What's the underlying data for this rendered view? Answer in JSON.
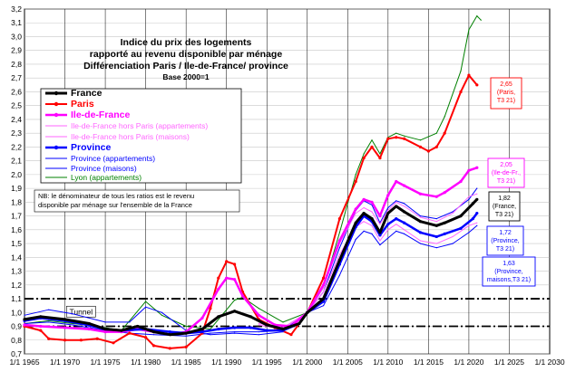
{
  "chart_data": {
    "type": "line",
    "title": "Indice du prix des logements\nrapporté au revenu disponible par ménage\nDifférenciation Paris / Ile-de-France/ province",
    "subtitle": "Base 2000=1",
    "xlim": [
      1965,
      2030
    ],
    "ylim": [
      0.7,
      3.2
    ],
    "ytick_step": 0.1,
    "xticks": [
      1965,
      1970,
      1975,
      1980,
      1985,
      1990,
      1995,
      2000,
      2005,
      2010,
      2015,
      2020,
      2025,
      2030
    ],
    "xtick_labels": [
      "1/1 1965",
      "1/1 1970",
      "1/1 1975",
      "1/1 1980",
      "1/1 1985",
      "1/1 1990",
      "1/1 1995",
      "1/1 2000",
      "1/1 2005",
      "1/1 2010",
      "1/1 2015",
      "1/1 2020",
      "1/1 2025",
      "1/1 2030"
    ],
    "grid": true,
    "tunnel": {
      "label": "Tunnel",
      "upper": 1.1,
      "lower": 0.9
    },
    "legend_position": "top-left",
    "note": {
      "lines": [
        "NB: le dénominateur de tous les ratios est le revenu",
        "disponible par ménage sur l'ensemble de la France"
      ]
    },
    "series": [
      {
        "name": "France",
        "color": "#000000",
        "width": 3,
        "marker": true,
        "points": [
          [
            1965,
            0.95
          ],
          [
            1967,
            0.97
          ],
          [
            1970,
            0.95
          ],
          [
            1973,
            0.92
          ],
          [
            1975,
            0.88
          ],
          [
            1977,
            0.87
          ],
          [
            1979,
            0.9
          ],
          [
            1981,
            0.86
          ],
          [
            1983,
            0.84
          ],
          [
            1985,
            0.85
          ],
          [
            1987,
            0.88
          ],
          [
            1989,
            0.97
          ],
          [
            1991,
            1.01
          ],
          [
            1993,
            0.97
          ],
          [
            1995,
            0.91
          ],
          [
            1997,
            0.88
          ],
          [
            1999,
            0.92
          ],
          [
            2000,
            1.0
          ],
          [
            2002,
            1.1
          ],
          [
            2004,
            1.38
          ],
          [
            2006,
            1.65
          ],
          [
            2007,
            1.72
          ],
          [
            2008,
            1.68
          ],
          [
            2009,
            1.58
          ],
          [
            2010,
            1.72
          ],
          [
            2011,
            1.77
          ],
          [
            2012,
            1.73
          ],
          [
            2014,
            1.66
          ],
          [
            2016,
            1.63
          ],
          [
            2017,
            1.65
          ],
          [
            2019,
            1.7
          ],
          [
            2020.5,
            1.79
          ],
          [
            2021,
            1.82
          ]
        ]
      },
      {
        "name": "Paris",
        "color": "#ff0000",
        "width": 2,
        "marker": true,
        "points": [
          [
            1965,
            0.9
          ],
          [
            1967,
            0.87
          ],
          [
            1968,
            0.81
          ],
          [
            1970,
            0.8
          ],
          [
            1972,
            0.8
          ],
          [
            1974,
            0.81
          ],
          [
            1976,
            0.78
          ],
          [
            1978,
            0.85
          ],
          [
            1980,
            0.82
          ],
          [
            1981,
            0.76
          ],
          [
            1983,
            0.74
          ],
          [
            1985,
            0.75
          ],
          [
            1987,
            0.85
          ],
          [
            1988,
            1.03
          ],
          [
            1989,
            1.25
          ],
          [
            1990,
            1.37
          ],
          [
            1991,
            1.35
          ],
          [
            1992,
            1.15
          ],
          [
            1994,
            0.95
          ],
          [
            1996,
            0.89
          ],
          [
            1998,
            0.84
          ],
          [
            2000,
            1.0
          ],
          [
            2002,
            1.25
          ],
          [
            2004,
            1.68
          ],
          [
            2006,
            1.95
          ],
          [
            2007,
            2.12
          ],
          [
            2008,
            2.2
          ],
          [
            2009,
            2.12
          ],
          [
            2010,
            2.26
          ],
          [
            2011,
            2.27
          ],
          [
            2012,
            2.26
          ],
          [
            2014,
            2.2
          ],
          [
            2015,
            2.17
          ],
          [
            2016,
            2.2
          ],
          [
            2017,
            2.3
          ],
          [
            2019,
            2.6
          ],
          [
            2020,
            2.72
          ],
          [
            2021,
            2.65
          ]
        ]
      },
      {
        "name": "Ile-de-France",
        "color": "#ff00ff",
        "width": 2.5,
        "marker": true,
        "points": [
          [
            1965,
            0.91
          ],
          [
            1967,
            0.9
          ],
          [
            1970,
            0.89
          ],
          [
            1973,
            0.88
          ],
          [
            1975,
            0.86
          ],
          [
            1977,
            0.86
          ],
          [
            1979,
            0.88
          ],
          [
            1981,
            0.86
          ],
          [
            1983,
            0.84
          ],
          [
            1985,
            0.86
          ],
          [
            1987,
            0.96
          ],
          [
            1989,
            1.17
          ],
          [
            1990,
            1.25
          ],
          [
            1991,
            1.24
          ],
          [
            1992,
            1.12
          ],
          [
            1994,
            0.98
          ],
          [
            1996,
            0.91
          ],
          [
            1998,
            0.9
          ],
          [
            2000,
            1.0
          ],
          [
            2002,
            1.2
          ],
          [
            2004,
            1.52
          ],
          [
            2006,
            1.75
          ],
          [
            2007,
            1.82
          ],
          [
            2008,
            1.8
          ],
          [
            2009,
            1.7
          ],
          [
            2010,
            1.85
          ],
          [
            2011,
            1.95
          ],
          [
            2012,
            1.92
          ],
          [
            2014,
            1.86
          ],
          [
            2016,
            1.84
          ],
          [
            2017,
            1.87
          ],
          [
            2019,
            1.95
          ],
          [
            2020,
            2.03
          ],
          [
            2021,
            2.05
          ]
        ]
      },
      {
        "name": "Ile-de-France hors Paris (appartements)",
        "color": "#ff66ff",
        "width": 1,
        "marker": false,
        "points": [
          [
            1994,
            0.92
          ],
          [
            1997,
            0.89
          ],
          [
            2000,
            1.0
          ],
          [
            2002,
            1.18
          ],
          [
            2004,
            1.5
          ],
          [
            2006,
            1.72
          ],
          [
            2007,
            1.76
          ],
          [
            2008,
            1.73
          ],
          [
            2009,
            1.64
          ],
          [
            2010,
            1.74
          ],
          [
            2011,
            1.8
          ],
          [
            2012,
            1.77
          ],
          [
            2014,
            1.69
          ],
          [
            2016,
            1.66
          ],
          [
            2018,
            1.72
          ],
          [
            2020,
            1.84
          ],
          [
            2021,
            1.86
          ]
        ]
      },
      {
        "name": "Ile-de-France hors Paris (maisons)",
        "color": "#ff66ff",
        "width": 1,
        "marker": false,
        "points": [
          [
            1994,
            0.91
          ],
          [
            1997,
            0.88
          ],
          [
            2000,
            1.0
          ],
          [
            2002,
            1.15
          ],
          [
            2004,
            1.42
          ],
          [
            2006,
            1.62
          ],
          [
            2007,
            1.66
          ],
          [
            2008,
            1.63
          ],
          [
            2009,
            1.52
          ],
          [
            2010,
            1.6
          ],
          [
            2011,
            1.64
          ],
          [
            2012,
            1.6
          ],
          [
            2014,
            1.52
          ],
          [
            2016,
            1.5
          ],
          [
            2018,
            1.55
          ],
          [
            2020,
            1.63
          ],
          [
            2021,
            1.65
          ]
        ]
      },
      {
        "name": "Province",
        "color": "#0000ff",
        "width": 2.5,
        "marker": true,
        "points": [
          [
            1965,
            0.94
          ],
          [
            1967,
            0.96
          ],
          [
            1970,
            0.94
          ],
          [
            1972,
            0.92
          ],
          [
            1975,
            0.88
          ],
          [
            1977,
            0.87
          ],
          [
            1980,
            0.88
          ],
          [
            1983,
            0.86
          ],
          [
            1985,
            0.85
          ],
          [
            1987,
            0.86
          ],
          [
            1989,
            0.88
          ],
          [
            1991,
            0.89
          ],
          [
            1993,
            0.89
          ],
          [
            1995,
            0.87
          ],
          [
            1997,
            0.87
          ],
          [
            1999,
            0.92
          ],
          [
            2000,
            1.0
          ],
          [
            2002,
            1.08
          ],
          [
            2004,
            1.35
          ],
          [
            2006,
            1.62
          ],
          [
            2007,
            1.7
          ],
          [
            2008,
            1.66
          ],
          [
            2009,
            1.56
          ],
          [
            2010,
            1.64
          ],
          [
            2011,
            1.68
          ],
          [
            2012,
            1.65
          ],
          [
            2014,
            1.58
          ],
          [
            2016,
            1.55
          ],
          [
            2017,
            1.57
          ],
          [
            2019,
            1.61
          ],
          [
            2020.5,
            1.68
          ],
          [
            2021,
            1.72
          ]
        ]
      },
      {
        "name": "Province (appartements)",
        "color": "#0000ff",
        "width": 1,
        "marker": false,
        "points": [
          [
            1965,
            0.98
          ],
          [
            1968,
            1.02
          ],
          [
            1971,
            0.99
          ],
          [
            1975,
            0.93
          ],
          [
            1978,
            0.93
          ],
          [
            1980,
            1.04
          ],
          [
            1982,
            1.0
          ],
          [
            1985,
            0.87
          ],
          [
            1988,
            0.84
          ],
          [
            1991,
            0.85
          ],
          [
            1994,
            0.84
          ],
          [
            1997,
            0.86
          ],
          [
            2000,
            1.0
          ],
          [
            2002,
            1.15
          ],
          [
            2004,
            1.47
          ],
          [
            2006,
            1.74
          ],
          [
            2007,
            1.81
          ],
          [
            2008,
            1.78
          ],
          [
            2009,
            1.65
          ],
          [
            2010,
            1.76
          ],
          [
            2011,
            1.81
          ],
          [
            2012,
            1.79
          ],
          [
            2014,
            1.7
          ],
          [
            2016,
            1.68
          ],
          [
            2018,
            1.73
          ],
          [
            2020,
            1.82
          ],
          [
            2021,
            1.9
          ]
        ]
      },
      {
        "name": "Province (maisons)",
        "color": "#0000ff",
        "width": 1,
        "marker": false,
        "points": [
          [
            1965,
            0.92
          ],
          [
            1968,
            0.93
          ],
          [
            1971,
            0.91
          ],
          [
            1975,
            0.87
          ],
          [
            1978,
            0.85
          ],
          [
            1981,
            0.84
          ],
          [
            1985,
            0.83
          ],
          [
            1988,
            0.85
          ],
          [
            1991,
            0.86
          ],
          [
            1994,
            0.86
          ],
          [
            1997,
            0.87
          ],
          [
            2000,
            1.0
          ],
          [
            2002,
            1.05
          ],
          [
            2004,
            1.27
          ],
          [
            2006,
            1.53
          ],
          [
            2007,
            1.59
          ],
          [
            2008,
            1.57
          ],
          [
            2009,
            1.49
          ],
          [
            2010,
            1.54
          ],
          [
            2011,
            1.59
          ],
          [
            2012,
            1.57
          ],
          [
            2014,
            1.5
          ],
          [
            2016,
            1.47
          ],
          [
            2018,
            1.5
          ],
          [
            2020,
            1.58
          ],
          [
            2021,
            1.63
          ]
        ]
      },
      {
        "name": "Lyon (appartements)",
        "color": "#008000",
        "width": 1,
        "marker": false,
        "points": [
          [
            1965,
            0.92
          ],
          [
            1968,
            0.94
          ],
          [
            1971,
            0.92
          ],
          [
            1974,
            0.9
          ],
          [
            1977,
            0.87
          ],
          [
            1980,
            1.08
          ],
          [
            1982,
            0.98
          ],
          [
            1985,
            0.9
          ],
          [
            1988,
            0.88
          ],
          [
            1991,
            1.09
          ],
          [
            1992,
            1.11
          ],
          [
            1994,
            1.03
          ],
          [
            1997,
            0.93
          ],
          [
            2000,
            1.0
          ],
          [
            2002,
            1.18
          ],
          [
            2004,
            1.58
          ],
          [
            2006,
            2.0
          ],
          [
            2007,
            2.15
          ],
          [
            2008,
            2.25
          ],
          [
            2009,
            2.15
          ],
          [
            2010,
            2.27
          ],
          [
            2011,
            2.3
          ],
          [
            2012,
            2.28
          ],
          [
            2014,
            2.25
          ],
          [
            2016,
            2.3
          ],
          [
            2017,
            2.42
          ],
          [
            2019,
            2.75
          ],
          [
            2020,
            3.05
          ],
          [
            2021,
            3.15
          ],
          [
            2021.5,
            3.12
          ]
        ]
      }
    ],
    "annotations": [
      {
        "lines": [
          "2,65",
          "(Paris,",
          "T3 21)"
        ],
        "color": "#ff0000",
        "y": 2.65
      },
      {
        "lines": [
          "2,05",
          "(Ile-de-Fr.,",
          "T3 21)"
        ],
        "color": "#ff00ff",
        "y": 2.05
      },
      {
        "lines": [
          "1,82",
          "(France,",
          "T3 21)"
        ],
        "color": "#000000",
        "y": 1.82
      },
      {
        "lines": [
          "1,72",
          "(Province,",
          "T3 21)"
        ],
        "color": "#0000ff",
        "y": 1.72
      },
      {
        "lines": [
          "1,63",
          "(Province,",
          "maisons,T3 21)"
        ],
        "color": "#0000ff",
        "y": 1.63
      }
    ]
  }
}
